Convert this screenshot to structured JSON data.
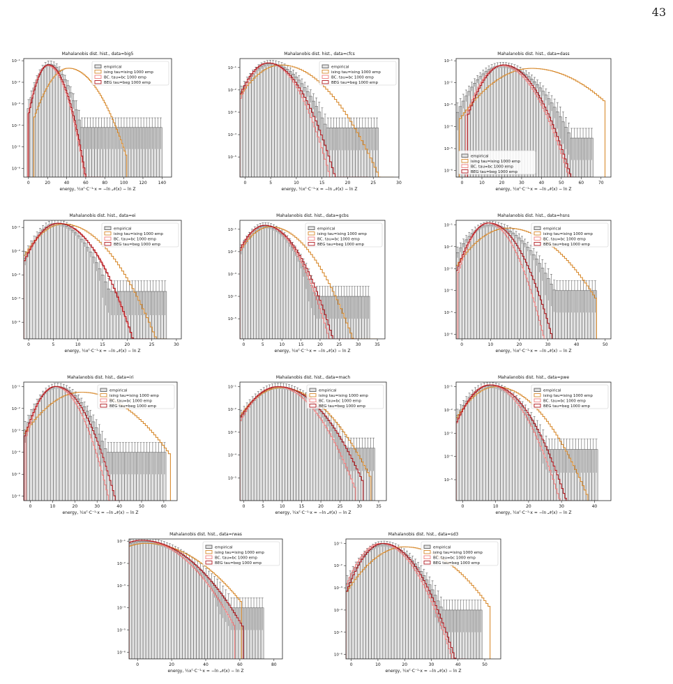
{
  "page": {
    "number": "43"
  },
  "common": {
    "xlabel": "energy, ½xᵀ·C⁻¹·x = −ln 𝒩(x) − ln Z",
    "legend": [
      "empirical",
      "ising tau=ising 1000  emp",
      "BC. tau=bc 1000  emp",
      "BEG tau=beg 1000  emp"
    ],
    "colors": {
      "empirical": "#606060",
      "empirical_fill": "#e3e3e3",
      "ising": "#d88a2e",
      "bc": "#f07e7e",
      "beg": "#b0181e"
    }
  },
  "chart_data": [
    {
      "type": "bar",
      "title": "Mahalanobis dist. hist., data=big5",
      "xlim": [
        -5,
        150
      ],
      "xticks": [
        "0",
        "20",
        "40",
        "60",
        "80",
        "100",
        "120",
        "140"
      ],
      "yticks": [
        "10⁻⁶",
        "10⁻⁵",
        "10⁻⁴",
        "10⁻³",
        "10⁻²",
        "10⁻¹"
      ],
      "ylog": [
        -6.4,
        -0.9
      ],
      "legend_pos": "top-right",
      "series": [
        {
          "name": "empirical",
          "peak": 22,
          "width": 9,
          "max": 0.07,
          "tail": 8e-05,
          "end": 140
        },
        {
          "name": "ising",
          "peak": 42,
          "width": 14,
          "max": 0.045,
          "tail": 0,
          "end": 103
        },
        {
          "name": "BC",
          "peak": 20,
          "width": 8,
          "max": 0.06,
          "tail": 0,
          "end": 74
        },
        {
          "name": "BEG",
          "peak": 21,
          "width": 8,
          "max": 0.065,
          "tail": 0,
          "end": 78
        }
      ]
    },
    {
      "type": "bar",
      "title": "Mahalanobis dist. hist., data=cfcs",
      "xlim": [
        -1,
        30
      ],
      "xticks": [
        "0",
        "5",
        "10",
        "15",
        "20",
        "25",
        "30"
      ],
      "yticks": [
        "10⁻⁵",
        "10⁻⁴",
        "10⁻³",
        "10⁻²",
        "10⁻¹"
      ],
      "ylog": [
        -5.9,
        -0.6
      ],
      "legend_pos": "top-right",
      "series": [
        {
          "name": "empirical",
          "peak": 5,
          "width": 3,
          "max": 0.15,
          "tail": 0.0002,
          "end": 26
        },
        {
          "name": "ising",
          "peak": 7,
          "width": 4,
          "max": 0.13,
          "tail": 0,
          "end": 29
        },
        {
          "name": "BC",
          "peak": 4.5,
          "width": 2.5,
          "max": 0.16,
          "tail": 0,
          "end": 23
        },
        {
          "name": "BEG",
          "peak": 4.5,
          "width": 2.7,
          "max": 0.16,
          "tail": 0,
          "end": 24
        }
      ]
    },
    {
      "type": "bar",
      "title": "Mahalanobis dist. hist., data=dass",
      "xlim": [
        -3,
        75
      ],
      "xticks": [
        "0",
        "10",
        "20",
        "30",
        "40",
        "50",
        "60",
        "70"
      ],
      "yticks": [
        "10⁻⁶",
        "10⁻⁵",
        "10⁻⁴",
        "10⁻³",
        "10⁻²",
        "10⁻¹"
      ],
      "ylog": [
        -6.3,
        -0.9
      ],
      "legend_pos": "bottom-left",
      "series": [
        {
          "name": "empirical",
          "peak": 20,
          "width": 9,
          "max": 0.06,
          "tail": 3e-05,
          "end": 66
        },
        {
          "name": "ising",
          "peak": 35,
          "width": 14,
          "max": 0.045,
          "tail": 0,
          "end": 72
        },
        {
          "name": "BC",
          "peak": 20,
          "width": 7,
          "max": 0.06,
          "tail": 0,
          "end": 55
        },
        {
          "name": "BEG",
          "peak": 21,
          "width": 7,
          "max": 0.065,
          "tail": 0,
          "end": 58
        }
      ]
    },
    {
      "type": "bar",
      "title": "Mahalanobis dist. hist., data=ei",
      "xlim": [
        -1,
        31
      ],
      "xticks": [
        "0",
        "5",
        "10",
        "15",
        "20",
        "25",
        "30"
      ],
      "yticks": [
        "10⁻⁵",
        "10⁻⁴",
        "10⁻³",
        "10⁻²",
        "10⁻¹"
      ],
      "ylog": [
        -5.7,
        -0.7
      ],
      "legend_pos": "top-right",
      "series": [
        {
          "name": "empirical",
          "peak": 5.5,
          "width": 3,
          "max": 0.15,
          "tail": 0.0002,
          "end": 28
        },
        {
          "name": "ising",
          "peak": 7,
          "width": 4,
          "max": 0.14,
          "tail": 0,
          "end": 28
        },
        {
          "name": "BC",
          "peak": 6,
          "width": 3.2,
          "max": 0.15,
          "tail": 0,
          "end": 23
        },
        {
          "name": "BEG",
          "peak": 6,
          "width": 3.2,
          "max": 0.15,
          "tail": 0,
          "end": 25
        }
      ]
    },
    {
      "type": "bar",
      "title": "Mahalanobis dist. hist., data=gcbs",
      "xlim": [
        -1,
        37
      ],
      "xticks": [
        "0",
        "5",
        "10",
        "15",
        "20",
        "25",
        "30",
        "35"
      ],
      "yticks": [
        "10⁻⁵",
        "10⁻⁴",
        "10⁻³",
        "10⁻²",
        "10⁻¹"
      ],
      "ylog": [
        -5.9,
        -0.6
      ],
      "legend_pos": "top-right",
      "series": [
        {
          "name": "empirical",
          "peak": 5.5,
          "width": 3.5,
          "max": 0.14,
          "tail": 0.0001,
          "end": 33
        },
        {
          "name": "ising",
          "peak": 7,
          "width": 4.5,
          "max": 0.13,
          "tail": 0,
          "end": 35
        },
        {
          "name": "BC",
          "peak": 5.5,
          "width": 3.5,
          "max": 0.15,
          "tail": 0,
          "end": 27
        },
        {
          "name": "BEG",
          "peak": 5.5,
          "width": 3.7,
          "max": 0.15,
          "tail": 0,
          "end": 30
        }
      ]
    },
    {
      "type": "bar",
      "title": "Mahalanobis dist. hist., data=hsns",
      "xlim": [
        -2,
        52
      ],
      "xticks": [
        "0",
        "10",
        "20",
        "30",
        "40",
        "50"
      ],
      "yticks": [
        "10⁻⁶",
        "10⁻⁵",
        "10⁻⁴",
        "10⁻³",
        "10⁻²",
        "10⁻¹"
      ],
      "ylog": [
        -6.2,
        -0.8
      ],
      "legend_pos": "top-right",
      "series": [
        {
          "name": "empirical",
          "peak": 10,
          "width": 6,
          "max": 0.1,
          "tail": 0.0001,
          "end": 47
        },
        {
          "name": "ising",
          "peak": 16,
          "width": 8,
          "max": 0.07,
          "tail": 0,
          "end": 47
        },
        {
          "name": "BC",
          "peak": 9,
          "width": 4,
          "max": 0.12,
          "tail": 0,
          "end": 30
        },
        {
          "name": "BEG",
          "peak": 9.5,
          "width": 4.5,
          "max": 0.12,
          "tail": 0,
          "end": 34
        }
      ]
    },
    {
      "type": "bar",
      "title": "Mahalanobis dist. hist., data=iri",
      "xlim": [
        -3,
        66
      ],
      "xticks": [
        "0",
        "10",
        "20",
        "30",
        "40",
        "50",
        "60"
      ],
      "yticks": [
        "10⁻⁶",
        "10⁻⁵",
        "10⁻⁴",
        "10⁻³",
        "10⁻²",
        "10⁻¹"
      ],
      "ylog": [
        -6.2,
        -0.8
      ],
      "legend_pos": "top-right",
      "series": [
        {
          "name": "empirical",
          "peak": 12,
          "width": 6,
          "max": 0.1,
          "tail": 0.0001,
          "end": 61
        },
        {
          "name": "ising",
          "peak": 23,
          "width": 11,
          "max": 0.055,
          "tail": 0,
          "end": 63
        },
        {
          "name": "BC",
          "peak": 11,
          "width": 5,
          "max": 0.1,
          "tail": 0,
          "end": 38
        },
        {
          "name": "BEG",
          "peak": 11.5,
          "width": 5.5,
          "max": 0.1,
          "tail": 0,
          "end": 42
        }
      ]
    },
    {
      "type": "bar",
      "title": "Mahalanobis dist. hist., data=mach",
      "xlim": [
        -1,
        37
      ],
      "xticks": [
        "0",
        "5",
        "10",
        "15",
        "20",
        "25",
        "30",
        "35"
      ],
      "yticks": [
        "10⁻⁵",
        "10⁻⁴",
        "10⁻³",
        "10⁻²",
        "10⁻¹"
      ],
      "ylog": [
        -6.0,
        -0.8
      ],
      "legend_pos": "top-right",
      "series": [
        {
          "name": "empirical",
          "peak": 9,
          "width": 5,
          "max": 0.1,
          "tail": 0.0002,
          "end": 34
        },
        {
          "name": "ising",
          "peak": 9.5,
          "width": 5.5,
          "max": 0.09,
          "tail": 0,
          "end": 33
        },
        {
          "name": "BC",
          "peak": 8.5,
          "width": 4.5,
          "max": 0.1,
          "tail": 0,
          "end": 29
        },
        {
          "name": "BEG",
          "peak": 9,
          "width": 5,
          "max": 0.1,
          "tail": 0,
          "end": 31
        }
      ]
    },
    {
      "type": "bar",
      "title": "Mahalanobis dist. hist., data=pwe",
      "xlim": [
        -2,
        45
      ],
      "xticks": [
        "0",
        "10",
        "20",
        "30",
        "40"
      ],
      "yticks": [
        "10⁻⁵",
        "10⁻⁴",
        "10⁻³",
        "10⁻²",
        "10⁻¹"
      ],
      "ylog": [
        -5.9,
        -0.8
      ],
      "legend_pos": "top-right",
      "series": [
        {
          "name": "empirical",
          "peak": 8,
          "width": 5,
          "max": 0.11,
          "tail": 0.0002,
          "end": 41
        },
        {
          "name": "ising",
          "peak": 10,
          "width": 6,
          "max": 0.1,
          "tail": 0,
          "end": 38
        },
        {
          "name": "BC",
          "peak": 8,
          "width": 4.5,
          "max": 0.12,
          "tail": 0,
          "end": 31
        },
        {
          "name": "BEG",
          "peak": 8.5,
          "width": 4.8,
          "max": 0.12,
          "tail": 0,
          "end": 33
        }
      ]
    },
    {
      "type": "bar",
      "title": "Mahalanobis dist. hist., data=rwas",
      "xlim": [
        -5,
        85
      ],
      "xticks": [
        "0",
        "20",
        "40",
        "60",
        "80"
      ],
      "yticks": [
        "10⁻⁶",
        "10⁻⁵",
        "10⁻⁴",
        "10⁻³",
        "10⁻²",
        "10⁻¹"
      ],
      "ylog": [
        -6.3,
        -0.9
      ],
      "legend_pos": "top-right",
      "series": [
        {
          "name": "empirical",
          "peak": 3,
          "width": 14,
          "max": 0.1,
          "tail": 0.0001,
          "end": 74
        },
        {
          "name": "ising",
          "peak": 5,
          "width": 16,
          "max": 0.08,
          "tail": 0,
          "end": 61
        },
        {
          "name": "BC",
          "peak": 2,
          "width": 13,
          "max": 0.11,
          "tail": 0,
          "end": 57
        },
        {
          "name": "BEG",
          "peak": 2.5,
          "width": 14,
          "max": 0.11,
          "tail": 0,
          "end": 62
        }
      ]
    },
    {
      "type": "bar",
      "title": "Mahalanobis dist. hist., data=sd3",
      "xlim": [
        -2,
        56
      ],
      "xticks": [
        "0",
        "10",
        "20",
        "30",
        "40",
        "50"
      ],
      "yticks": [
        "10⁻⁶",
        "10⁻⁵",
        "10⁻⁴",
        "10⁻³",
        "10⁻²",
        "10⁻¹"
      ],
      "ylog": [
        -6.2,
        -0.8
      ],
      "legend_pos": "top-right",
      "series": [
        {
          "name": "empirical",
          "peak": 12,
          "width": 6,
          "max": 0.09,
          "tail": 0.0001,
          "end": 49
        },
        {
          "name": "ising",
          "peak": 20,
          "width": 9,
          "max": 0.07,
          "tail": 0,
          "end": 52
        },
        {
          "name": "BC",
          "peak": 11,
          "width": 5.5,
          "max": 0.1,
          "tail": 0,
          "end": 40
        },
        {
          "name": "BEG",
          "peak": 12,
          "width": 5.5,
          "max": 0.1,
          "tail": 0,
          "end": 43
        }
      ]
    }
  ]
}
